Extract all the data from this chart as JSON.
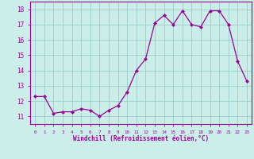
{
  "x": [
    0,
    1,
    2,
    3,
    4,
    5,
    6,
    7,
    8,
    9,
    10,
    11,
    12,
    13,
    14,
    15,
    16,
    17,
    18,
    19,
    20,
    21,
    22,
    23
  ],
  "y": [
    12.3,
    12.3,
    11.2,
    11.3,
    11.3,
    11.5,
    11.4,
    11.0,
    11.4,
    11.7,
    12.6,
    14.0,
    14.75,
    17.1,
    17.6,
    17.0,
    17.9,
    17.0,
    16.85,
    17.9,
    17.9,
    17.0,
    14.6,
    13.3
  ],
  "line_color": "#990099",
  "marker_color": "#990099",
  "bg_color": "#cceee8",
  "grid_color": "#99cccc",
  "xlabel": "Windchill (Refroidissement éolien,°C)",
  "xlabel_color": "#990099",
  "tick_color": "#990099",
  "ylim": [
    10.5,
    18.5
  ],
  "xlim": [
    -0.5,
    23.5
  ],
  "yticks": [
    11,
    12,
    13,
    14,
    15,
    16,
    17,
    18
  ],
  "xticks": [
    0,
    1,
    2,
    3,
    4,
    5,
    6,
    7,
    8,
    9,
    10,
    11,
    12,
    13,
    14,
    15,
    16,
    17,
    18,
    19,
    20,
    21,
    22,
    23
  ],
  "figsize": [
    3.2,
    2.0
  ],
  "dpi": 100
}
